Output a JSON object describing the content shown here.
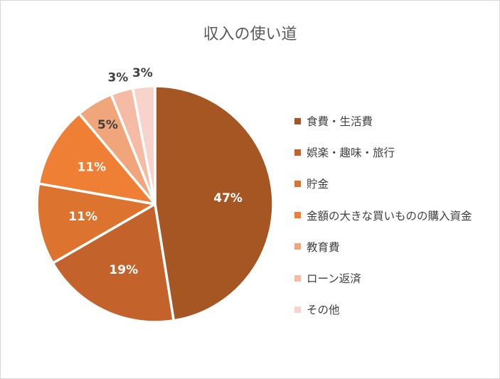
{
  "chart_data": {
    "type": "pie",
    "title": "収入の使い道",
    "categories": [
      "食費・生活費",
      "娯楽・趣味・旅行",
      "貯金",
      "金額の大きな買いものの購入資金",
      "教育費",
      "ローン返済",
      "その他"
    ],
    "values": [
      47,
      19,
      11,
      11,
      5,
      3,
      3
    ],
    "labels": [
      "47%",
      "19%",
      "11%",
      "11%",
      "5%",
      "3%",
      "3%"
    ],
    "colors": [
      "#a65622",
      "#c4622b",
      "#dc7430",
      "#ef7f34",
      "#f0a57a",
      "#f5bba5",
      "#f8d3cb"
    ],
    "label_colors": [
      "#ffffff",
      "#ffffff",
      "#ffffff",
      "#ffffff",
      "#404040",
      "#404040",
      "#404040"
    ],
    "legend_position": "right"
  }
}
